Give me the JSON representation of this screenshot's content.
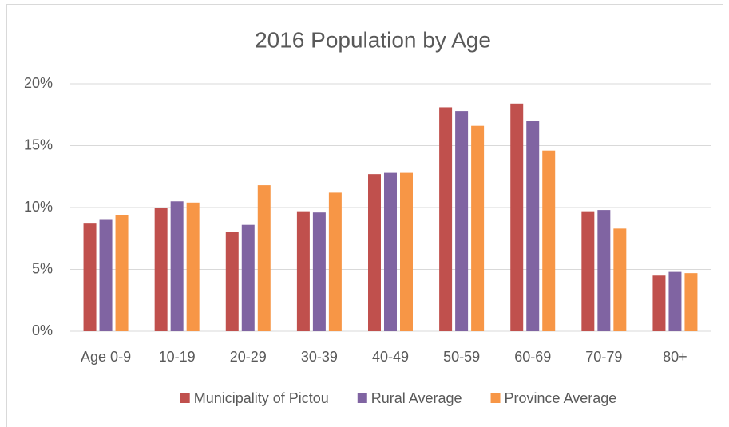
{
  "chart_data": {
    "type": "bar",
    "title": "2016 Population by Age",
    "categories": [
      "Age 0-9",
      "10-19",
      "20-29",
      "30-39",
      "40-49",
      "50-59",
      "60-69",
      "70-79",
      "80+"
    ],
    "series": [
      {
        "name": "Municipality of Pictou",
        "color": "#c0504d",
        "values": [
          8.7,
          10.0,
          8.0,
          9.7,
          12.7,
          18.1,
          18.4,
          9.7,
          4.5
        ]
      },
      {
        "name": "Rural Average",
        "color": "#8064a2",
        "values": [
          9.0,
          10.5,
          8.6,
          9.6,
          12.8,
          17.8,
          17.0,
          9.8,
          4.8
        ]
      },
      {
        "name": "Province Average",
        "color": "#f79646",
        "values": [
          9.4,
          10.4,
          11.8,
          11.2,
          12.8,
          16.6,
          14.6,
          8.3,
          4.7
        ]
      }
    ],
    "ylim": [
      0,
      20
    ],
    "yticks": [
      {
        "value": 0,
        "label": "0%"
      },
      {
        "value": 5,
        "label": "5%"
      },
      {
        "value": 10,
        "label": "10%"
      },
      {
        "value": 15,
        "label": "15%"
      },
      {
        "value": 20,
        "label": "20%"
      }
    ],
    "grid": true,
    "legend": "bottom"
  }
}
